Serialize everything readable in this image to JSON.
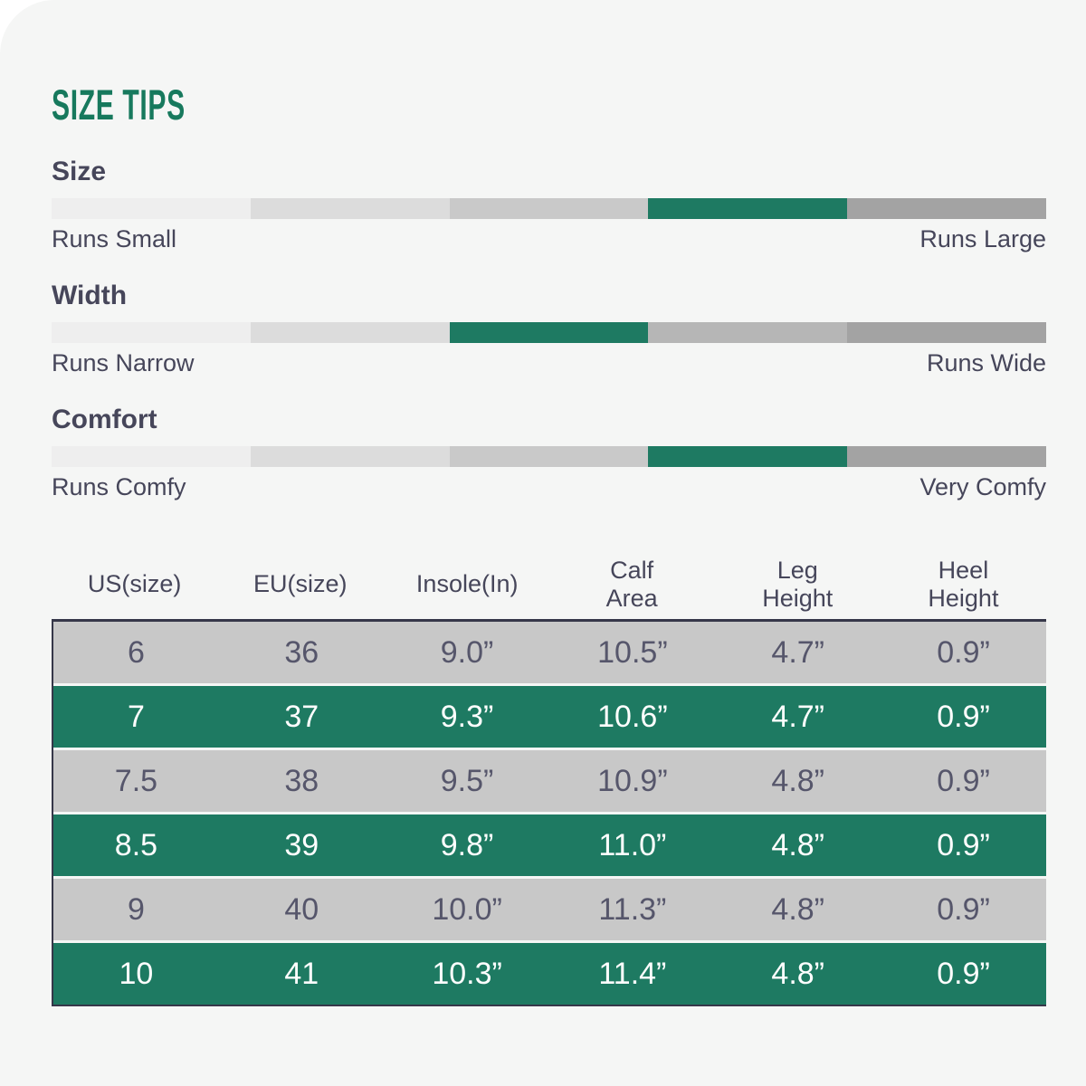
{
  "title": "SIZE TIPS",
  "colors": {
    "page_bg": "#F5F6F5",
    "frame_white": "#FFFFFF",
    "title_green": "#17795D",
    "accent_green": "#1E7A62",
    "dark_border": "#363749",
    "text_dark": "#46465A",
    "row_gray_bg": "#C8C8C8",
    "row_gray_text": "#56566B",
    "row_green_text": "#FFFFFF",
    "segment_grays": [
      "#EEEEEE",
      "#DCDCDC",
      "#C9C9C9",
      "#B6B6B6",
      "#A3A3A3"
    ]
  },
  "sliders": [
    {
      "label": "Size",
      "left_label": "Runs Small",
      "right_label": "Runs Large",
      "segments": 5,
      "active_segment": 4
    },
    {
      "label": "Width",
      "left_label": "Runs Narrow",
      "right_label": "Runs Wide",
      "segments": 5,
      "active_segment": 3
    },
    {
      "label": "Comfort",
      "left_label": "Runs Comfy",
      "right_label": "Very Comfy",
      "segments": 5,
      "active_segment": 4
    }
  ],
  "size_chart": {
    "columns": [
      "US(size)",
      "EU(size)",
      "Insole(In)",
      "Calf Area",
      "Leg Height",
      "Heel Height"
    ],
    "rows": [
      {
        "highlight": false,
        "cells": [
          "6",
          "36",
          "9.0”",
          "10.5”",
          "4.7”",
          "0.9”"
        ]
      },
      {
        "highlight": true,
        "cells": [
          "7",
          "37",
          "9.3”",
          "10.6”",
          "4.7”",
          "0.9”"
        ]
      },
      {
        "highlight": false,
        "cells": [
          "7.5",
          "38",
          "9.5”",
          "10.9”",
          "4.8”",
          "0.9”"
        ]
      },
      {
        "highlight": true,
        "cells": [
          "8.5",
          "39",
          "9.8”",
          "11.0”",
          "4.8”",
          "0.9”"
        ]
      },
      {
        "highlight": false,
        "cells": [
          "9",
          "40",
          "10.0”",
          "11.3”",
          "4.8”",
          "0.9”"
        ]
      },
      {
        "highlight": true,
        "cells": [
          "10",
          "41",
          "10.3”",
          "11.4”",
          "4.8”",
          "0.9”"
        ]
      }
    ]
  }
}
